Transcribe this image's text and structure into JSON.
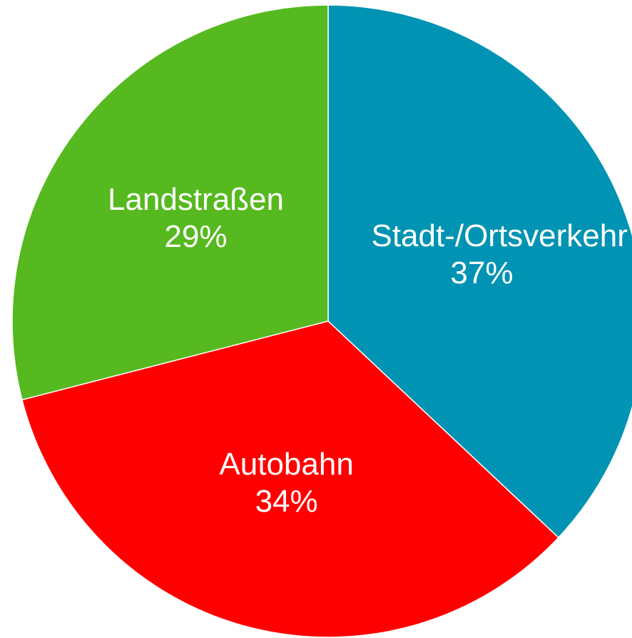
{
  "chart_data": {
    "type": "pie",
    "categories": [
      "Stadt-/Ortsverkehr",
      "Autobahn",
      "Landstraßen"
    ],
    "values": [
      37,
      34,
      29
    ],
    "value_labels": [
      "37%",
      "34%",
      "29%"
    ],
    "colors": [
      "#0093b3",
      "#ff0000",
      "#56b91f"
    ]
  }
}
